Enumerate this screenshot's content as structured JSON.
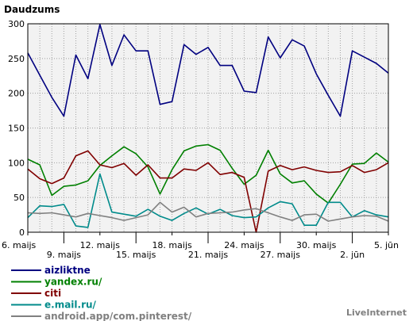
{
  "chart_data": {
    "type": "line",
    "title": "Daudzums",
    "ylim": [
      0,
      300
    ],
    "yticks": [
      0,
      50,
      100,
      150,
      200,
      250,
      300
    ],
    "grid": true,
    "legend_placement": "bottom-left",
    "x_labels_row1": [
      {
        "index": 0,
        "label": "6. maijs"
      },
      {
        "index": 6,
        "label": "12. maijs"
      },
      {
        "index": 12,
        "label": "18. maijs"
      },
      {
        "index": 18,
        "label": "24. maijs"
      },
      {
        "index": 24,
        "label": "30. maijs"
      },
      {
        "index": 30,
        "label": "5. jūn"
      }
    ],
    "x_labels_row2": [
      {
        "index": 3,
        "label": "9. maijs"
      },
      {
        "index": 9,
        "label": "15. maijs"
      },
      {
        "index": 15,
        "label": "21. maijs"
      },
      {
        "index": 21,
        "label": "27. maijs"
      },
      {
        "index": 27,
        "label": "2. jūn"
      }
    ],
    "series": [
      {
        "name": "aizliktne",
        "color": "#000080",
        "values": [
          258,
          226,
          194,
          167,
          255,
          221,
          299,
          240,
          284,
          261,
          261,
          184,
          188,
          270,
          256,
          266,
          240,
          240,
          203,
          201,
          281,
          251,
          277,
          268,
          228,
          197,
          167,
          261,
          252,
          243,
          229
        ]
      },
      {
        "name": "yandex.ru/",
        "color": "#008000",
        "values": [
          105,
          97,
          53,
          66,
          68,
          74,
          96,
          110,
          123,
          113,
          94,
          55,
          90,
          117,
          124,
          126,
          118,
          92,
          69,
          82,
          118,
          84,
          71,
          74,
          55,
          42,
          69,
          98,
          99,
          114,
          101
        ]
      },
      {
        "name": "citi",
        "color": "#800000",
        "values": [
          91,
          77,
          70,
          78,
          110,
          117,
          97,
          93,
          99,
          82,
          97,
          78,
          78,
          91,
          89,
          100,
          83,
          86,
          79,
          0,
          88,
          96,
          90,
          94,
          89,
          86,
          87,
          96,
          86,
          90,
          100
        ]
      },
      {
        "name": "e.mail.ru/",
        "color": "#008B8B",
        "values": [
          21,
          38,
          37,
          40,
          9,
          7,
          84,
          29,
          26,
          23,
          33,
          23,
          17,
          27,
          35,
          26,
          33,
          24,
          21,
          22,
          35,
          44,
          41,
          10,
          10,
          43,
          43,
          22,
          31,
          25,
          22
        ]
      },
      {
        "name": "android.app/com.pinterest/",
        "color": "#808080",
        "values": [
          28,
          27,
          28,
          25,
          22,
          27,
          24,
          21,
          17,
          21,
          25,
          43,
          29,
          36,
          22,
          27,
          28,
          29,
          32,
          34,
          28,
          22,
          17,
          25,
          26,
          16,
          19,
          22,
          24,
          23,
          16
        ]
      }
    ]
  },
  "brand": "LiveInternet"
}
